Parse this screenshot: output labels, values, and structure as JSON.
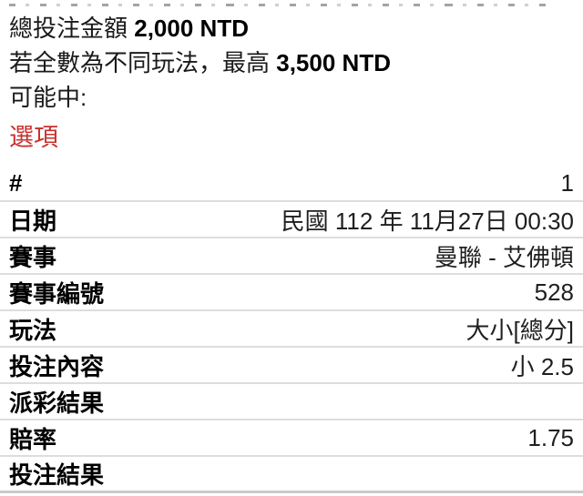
{
  "summary": {
    "total_label": "總投注金額",
    "total_value": "2,000 NTD",
    "max_prefix": "若全數為不同玩法，最高",
    "max_value": "3,500 NTD",
    "possible_win_label": "可能中:"
  },
  "section_title": "選項",
  "table": {
    "rows": [
      {
        "label": "#",
        "value": "1"
      },
      {
        "label": "日期",
        "value": "民國 112 年 11月27日 00:30"
      },
      {
        "label": "賽事",
        "value": "曼聯 - 艾佛頓"
      },
      {
        "label": "賽事編號",
        "value": "528"
      },
      {
        "label": "玩法",
        "value": "大小[總分]"
      },
      {
        "label": "投注內容",
        "value": "小 2.5"
      },
      {
        "label": "派彩結果",
        "value": ""
      },
      {
        "label": "賠率",
        "value": "1.75"
      },
      {
        "label": "投注結果",
        "value": ""
      }
    ]
  },
  "colors": {
    "accent_red": "#C9302C",
    "divider": "#DDDDDD",
    "label_text": "#000000",
    "value_text": "#1F1F1F"
  }
}
